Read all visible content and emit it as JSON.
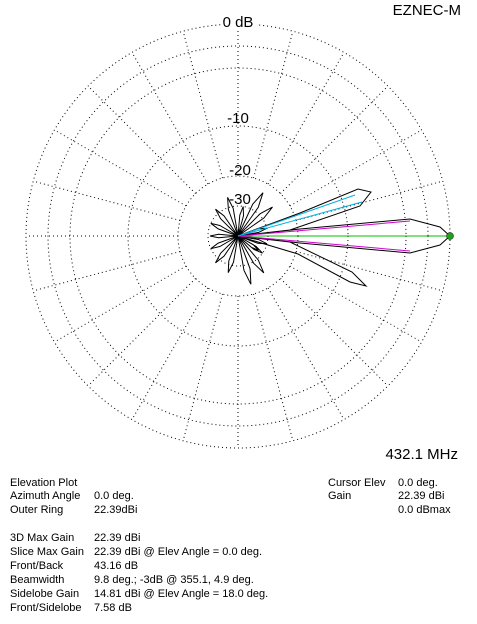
{
  "plot": {
    "program": "EZNEC-M",
    "ring_labels": [
      "0 dB",
      "-10",
      "-20",
      "-30"
    ],
    "frequency": "432.1 MHz"
  },
  "info": {
    "plot_type": "Elevation Plot",
    "rows": [
      {
        "label": "Azimuth Angle",
        "value": "0.0 deg."
      },
      {
        "label": "Outer Ring",
        "value": "22.39dBi"
      }
    ]
  },
  "cursor": {
    "rows": [
      {
        "label": "Cursor Elev",
        "value": "0.0 deg."
      },
      {
        "label": "Gain",
        "value": "22.39 dBi"
      },
      {
        "value": "0.0 dBmax"
      }
    ]
  },
  "results": {
    "rows": [
      {
        "label": "3D Max Gain",
        "value": "22.39 dBi"
      },
      {
        "label": "Slice Max Gain",
        "value": "22.39 dBi @ Elev Angle = 0.0 deg."
      },
      {
        "label": "Front/Back",
        "value": "43.16 dB"
      },
      {
        "label": "Beamwidth",
        "value": "9.8 deg.; -3dB @ 355.1, 4.9 deg."
      },
      {
        "label": "Sidelobe Gain",
        "value": "14.81 dBi @ Elev Angle = 18.0 deg."
      },
      {
        "label": "Front/Sidelobe",
        "value": "7.58 dB"
      }
    ]
  }
}
